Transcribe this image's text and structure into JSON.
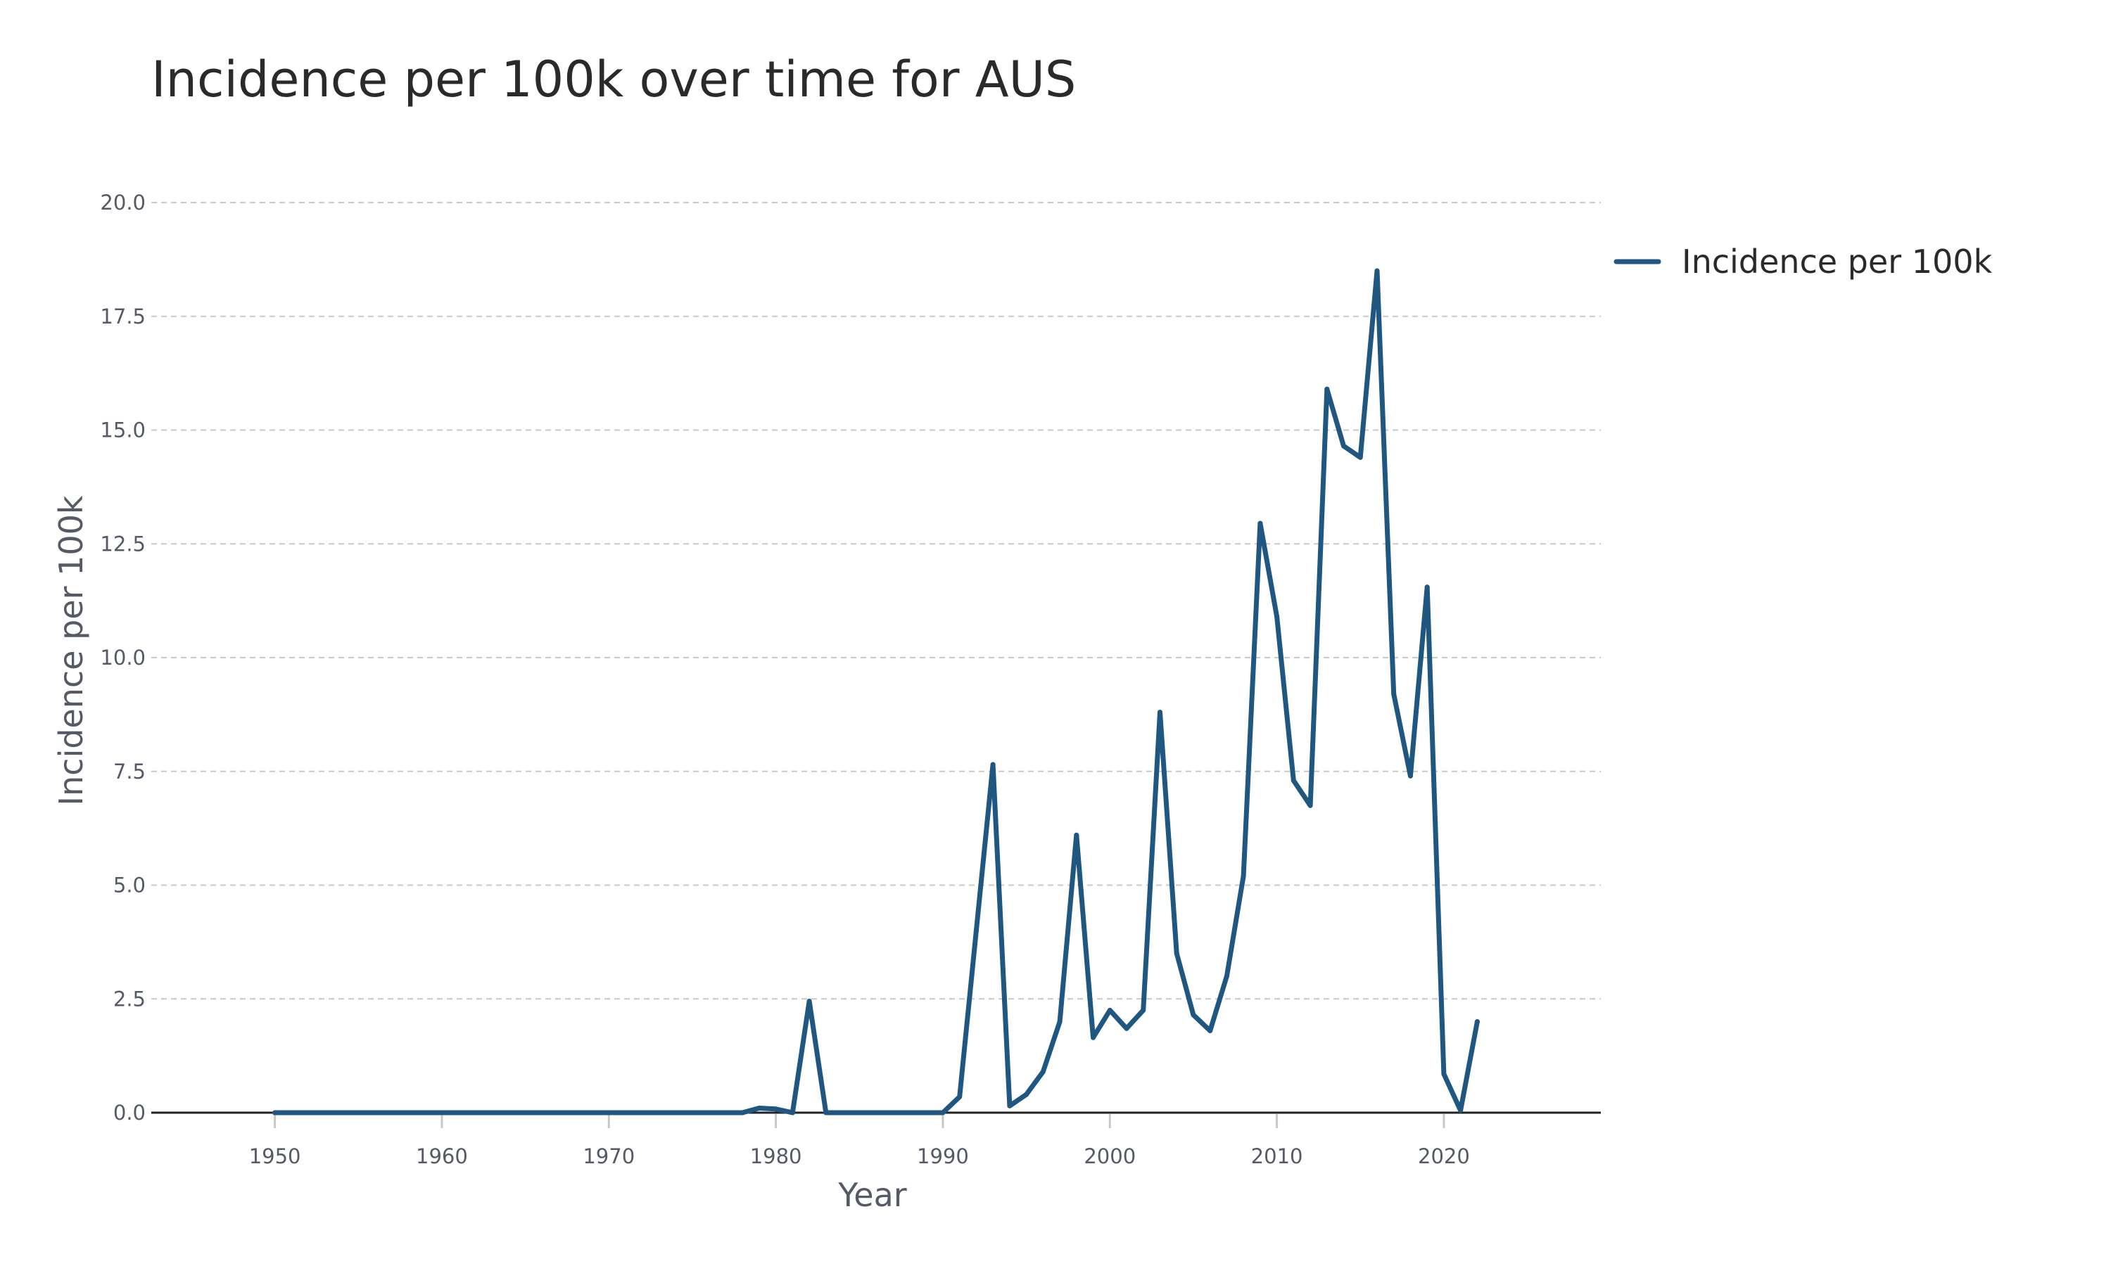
{
  "chart_data": {
    "type": "line",
    "title": "Incidence per 100k over time for AUS",
    "xlabel": "Year",
    "ylabel": "Incidence per 100k",
    "xlim": [
      1942.6,
      2029.4
    ],
    "ylim": [
      0,
      20
    ],
    "x_ticks": [
      1950,
      1960,
      1970,
      1980,
      1990,
      2000,
      2010,
      2020
    ],
    "y_ticks": [
      0,
      2.5,
      5,
      7.5,
      10,
      12.5,
      15,
      17.5,
      20
    ],
    "y_tick_labels": [
      "0.0",
      "2.5",
      "5.0",
      "7.5",
      "10.0",
      "12.5",
      "15.0",
      "17.5",
      "20.0"
    ],
    "grid": true,
    "legend_position": "top-right",
    "series": [
      {
        "name": "Incidence per 100k",
        "color": "#1f5780",
        "x": [
          1950,
          1951,
          1952,
          1953,
          1954,
          1955,
          1956,
          1957,
          1958,
          1959,
          1960,
          1961,
          1962,
          1963,
          1964,
          1965,
          1966,
          1967,
          1968,
          1969,
          1970,
          1971,
          1972,
          1973,
          1974,
          1975,
          1976,
          1977,
          1978,
          1979,
          1980,
          1981,
          1982,
          1983,
          1984,
          1985,
          1986,
          1987,
          1988,
          1989,
          1990,
          1991,
          1992,
          1993,
          1994,
          1995,
          1996,
          1997,
          1998,
          1999,
          2000,
          2001,
          2002,
          2003,
          2004,
          2005,
          2006,
          2007,
          2008,
          2009,
          2010,
          2011,
          2012,
          2013,
          2014,
          2015,
          2016,
          2017,
          2018,
          2019,
          2020,
          2021,
          2022
        ],
        "values": [
          0,
          0,
          0,
          0,
          0,
          0,
          0,
          0,
          0,
          0,
          0,
          0,
          0,
          0,
          0,
          0,
          0,
          0,
          0,
          0,
          0,
          0,
          0,
          0,
          0,
          0,
          0,
          0,
          0,
          0.1,
          0.08,
          0,
          2.45,
          0,
          0,
          0,
          0,
          0,
          0,
          0,
          0,
          0.35,
          4,
          7.65,
          0.15,
          0.4,
          0.9,
          2,
          6.1,
          1.65,
          2.25,
          1.85,
          2.25,
          8.8,
          3.5,
          2.15,
          1.8,
          3,
          5.2,
          12.95,
          10.9,
          7.3,
          6.75,
          15.9,
          14.65,
          14.4,
          18.5,
          9.2,
          7.4,
          11.55,
          0.85,
          0.05,
          2
        ]
      }
    ]
  }
}
